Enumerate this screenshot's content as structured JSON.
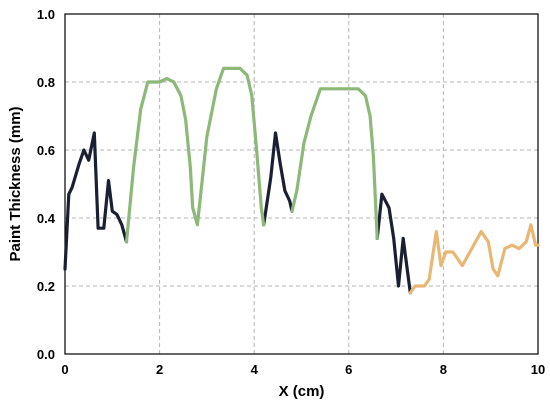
{
  "chart_data": {
    "type": "line",
    "title": "",
    "xlabel": "X (cm)",
    "ylabel": "Paint Thickness (mm)",
    "xlim": [
      0,
      10
    ],
    "ylim": [
      0,
      1.0
    ],
    "x_ticks": [
      0,
      2,
      4,
      6,
      8,
      10
    ],
    "y_ticks": [
      0.0,
      0.2,
      0.4,
      0.6,
      0.8,
      1.0
    ],
    "x_tick_labels": [
      "0",
      "2",
      "4",
      "6",
      "8",
      "10"
    ],
    "y_tick_labels": [
      "0.0",
      "0.2",
      "0.4",
      "0.6",
      "0.8",
      "1.0"
    ],
    "grid": true,
    "legend": "none",
    "series": [
      {
        "color": "#1a1f33",
        "segments": [
          [
            [
              0.0,
              0.25
            ],
            [
              0.08,
              0.47
            ],
            [
              0.15,
              0.49
            ],
            [
              0.3,
              0.56
            ],
            [
              0.4,
              0.6
            ],
            [
              0.5,
              0.57
            ],
            [
              0.62,
              0.65
            ],
            [
              0.7,
              0.37
            ],
            [
              0.82,
              0.37
            ],
            [
              0.92,
              0.51
            ],
            [
              1.0,
              0.42
            ],
            [
              1.1,
              0.41
            ],
            [
              1.2,
              0.38
            ],
            [
              1.3,
              0.33
            ]
          ],
          [
            [
              4.2,
              0.38
            ],
            [
              4.35,
              0.52
            ],
            [
              4.45,
              0.65
            ],
            [
              4.55,
              0.56
            ],
            [
              4.65,
              0.48
            ],
            [
              4.75,
              0.45
            ],
            [
              4.8,
              0.42
            ]
          ],
          [
            [
              6.6,
              0.34
            ],
            [
              6.7,
              0.47
            ],
            [
              6.85,
              0.43
            ],
            [
              6.95,
              0.34
            ],
            [
              7.05,
              0.2
            ],
            [
              7.15,
              0.34
            ],
            [
              7.3,
              0.18
            ]
          ]
        ]
      },
      {
        "color": "#8cb878",
        "segments": [
          [
            [
              1.3,
              0.33
            ],
            [
              1.45,
              0.55
            ],
            [
              1.6,
              0.72
            ],
            [
              1.75,
              0.8
            ],
            [
              2.0,
              0.8
            ],
            [
              2.15,
              0.81
            ],
            [
              2.3,
              0.8
            ],
            [
              2.45,
              0.76
            ],
            [
              2.55,
              0.69
            ],
            [
              2.65,
              0.55
            ],
            [
              2.7,
              0.43
            ],
            [
              2.8,
              0.38
            ],
            [
              3.0,
              0.64
            ],
            [
              3.2,
              0.78
            ],
            [
              3.35,
              0.84
            ],
            [
              3.7,
              0.84
            ],
            [
              3.85,
              0.82
            ],
            [
              3.95,
              0.76
            ],
            [
              4.05,
              0.6
            ],
            [
              4.15,
              0.43
            ],
            [
              4.2,
              0.38
            ]
          ],
          [
            [
              4.8,
              0.42
            ],
            [
              4.9,
              0.48
            ],
            [
              5.05,
              0.62
            ],
            [
              5.2,
              0.7
            ],
            [
              5.4,
              0.78
            ],
            [
              6.2,
              0.78
            ],
            [
              6.35,
              0.76
            ],
            [
              6.45,
              0.7
            ],
            [
              6.52,
              0.58
            ],
            [
              6.6,
              0.34
            ]
          ]
        ]
      },
      {
        "color": "#e8b774",
        "segments": [
          [
            [
              7.3,
              0.18
            ],
            [
              7.4,
              0.2
            ],
            [
              7.6,
              0.2
            ],
            [
              7.7,
              0.22
            ],
            [
              7.85,
              0.36
            ],
            [
              7.95,
              0.26
            ],
            [
              8.05,
              0.3
            ],
            [
              8.2,
              0.3
            ],
            [
              8.4,
              0.26
            ],
            [
              8.6,
              0.31
            ],
            [
              8.8,
              0.36
            ],
            [
              8.95,
              0.33
            ],
            [
              9.05,
              0.25
            ],
            [
              9.15,
              0.23
            ],
            [
              9.3,
              0.31
            ],
            [
              9.45,
              0.32
            ],
            [
              9.6,
              0.31
            ],
            [
              9.75,
              0.33
            ],
            [
              9.85,
              0.38
            ],
            [
              9.95,
              0.32
            ],
            [
              10.0,
              0.32
            ]
          ]
        ]
      }
    ]
  }
}
